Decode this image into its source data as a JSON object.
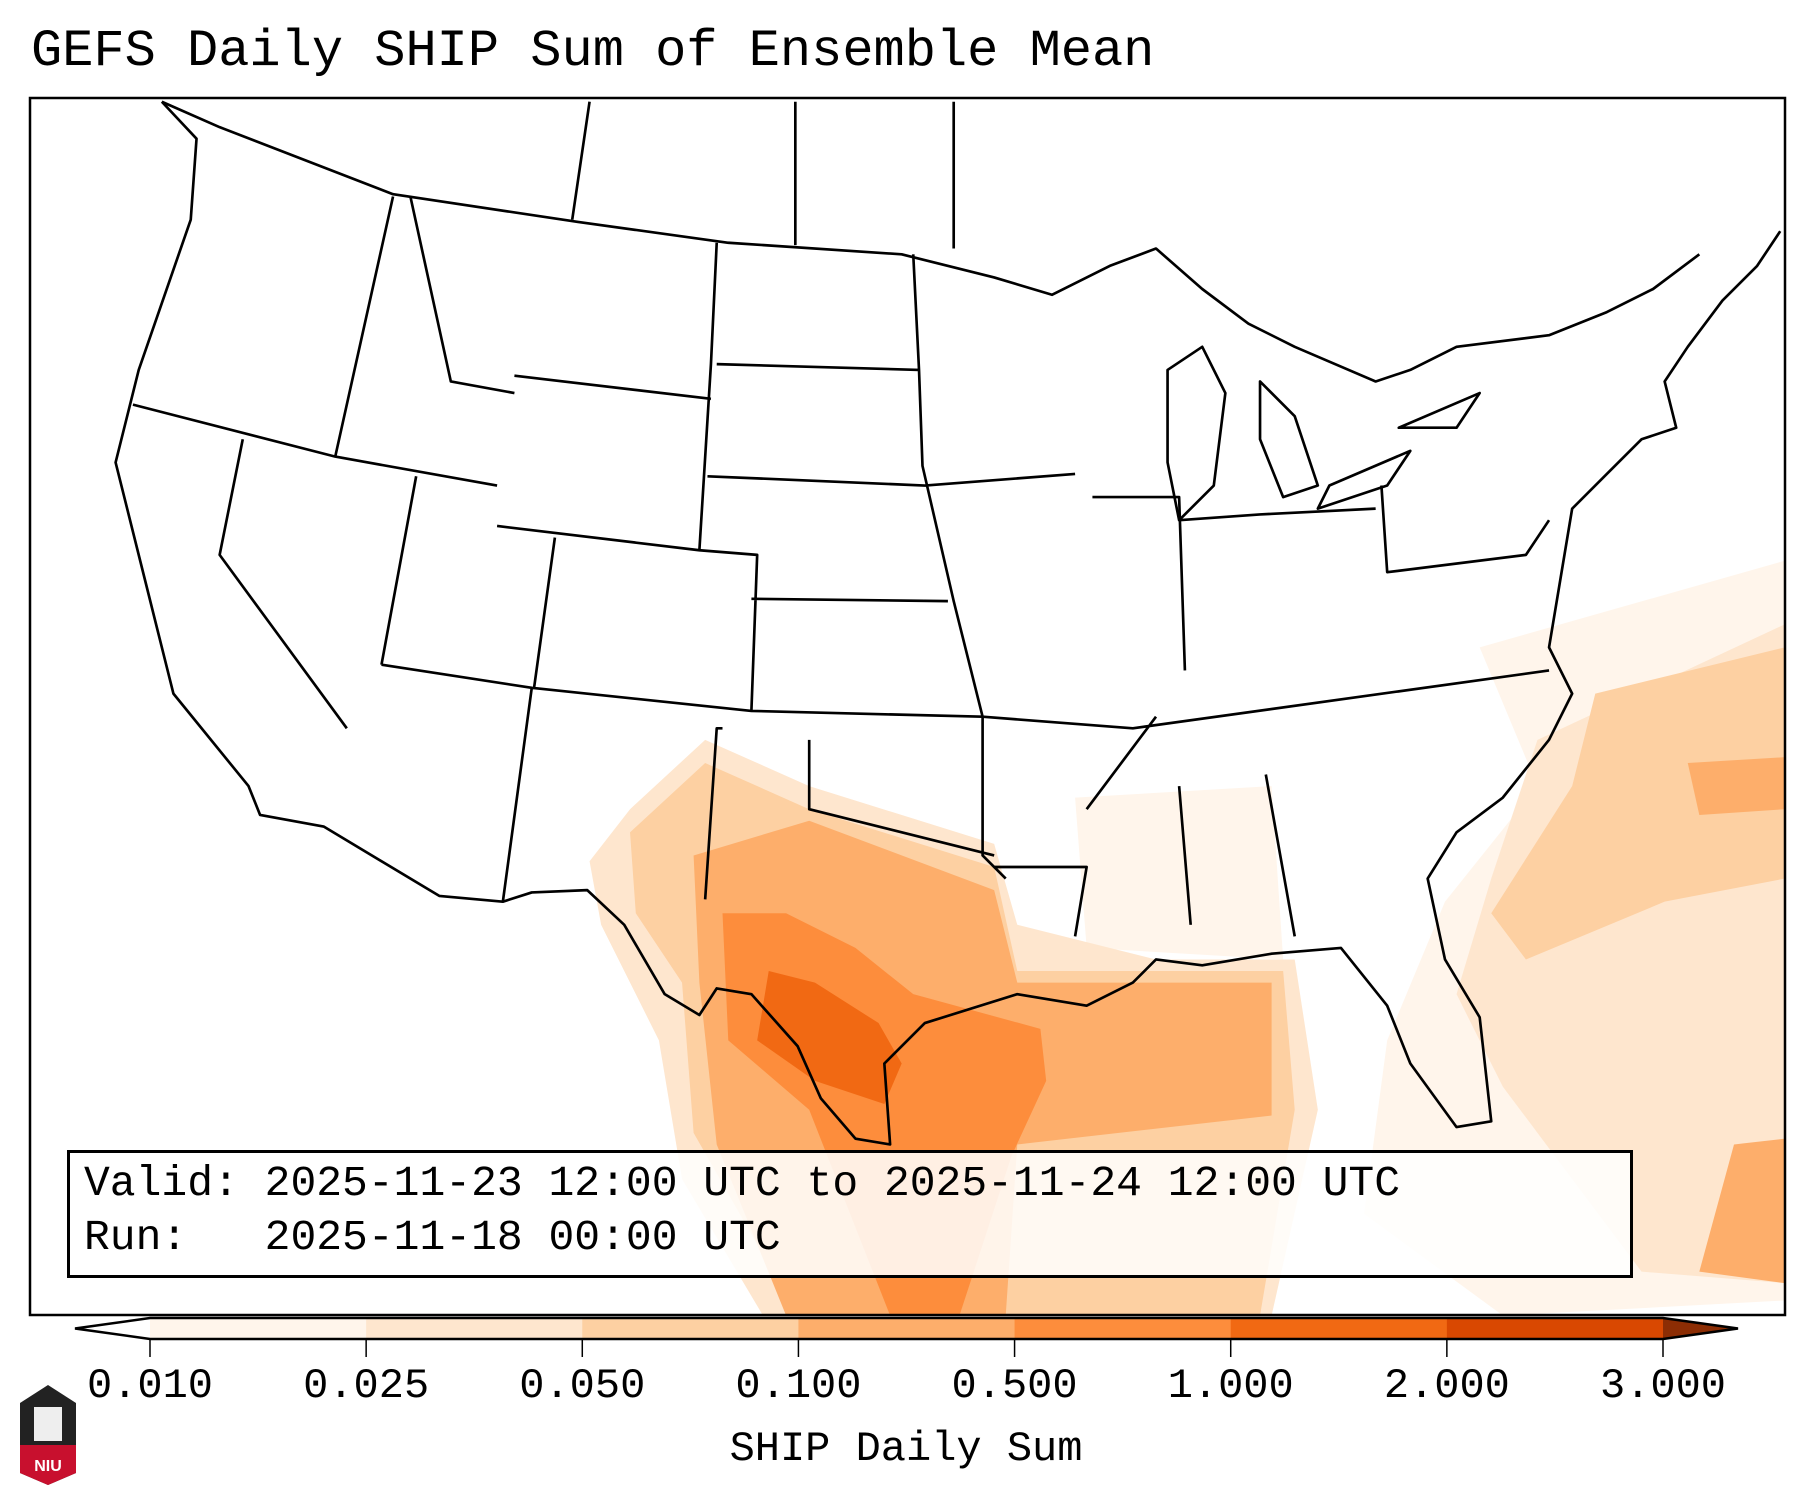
{
  "title": "GEFS Daily SHIP Sum of Ensemble Mean",
  "info": {
    "valid_label": "Valid:",
    "valid_value": "2025-11-23 12:00 UTC to 2025-11-24 12:00 UTC",
    "run_label": "Run:",
    "run_value": "2025-11-18 00:00 UTC"
  },
  "logo_text": "NIU",
  "chart_data": {
    "type": "heatmap",
    "title": "GEFS Daily SHIP Sum of Ensemble Mean",
    "region": "Contiguous United States, Gulf of Mexico, western Atlantic",
    "colorbar": {
      "label": "SHIP Daily Sum",
      "tick_labels": [
        "0.010",
        "0.025",
        "0.050",
        "0.100",
        "0.500",
        "1.000",
        "2.000",
        "3.000"
      ],
      "levels": [
        0.01,
        0.025,
        0.05,
        0.1,
        0.5,
        1.0,
        2.0,
        3.0
      ],
      "colors": [
        "#fff5eb",
        "#fee6ce",
        "#fdd0a2",
        "#fdae6b",
        "#fd8d3c",
        "#f16913",
        "#d94801"
      ],
      "extend_low_color": "#ffffff",
      "extend_high_color": "#8c2d04",
      "extend": "both",
      "orientation": "horizontal"
    },
    "features": [
      {
        "area": "South-central Texas",
        "max_range": [
          1.0,
          2.0
        ]
      },
      {
        "area": "Texas / upper Texas coast / northwestern Gulf",
        "range": [
          0.5,
          1.0
        ]
      },
      {
        "area": "Northern Gulf of Mexico, Texas, Oklahoma",
        "range": [
          0.1,
          0.5
        ]
      },
      {
        "area": "Western Atlantic east of Carolinas",
        "range": [
          0.1,
          1.0
        ]
      },
      {
        "area": "Lower Mississippi valley / Southeast",
        "range": [
          0.01,
          0.05
        ]
      }
    ]
  }
}
